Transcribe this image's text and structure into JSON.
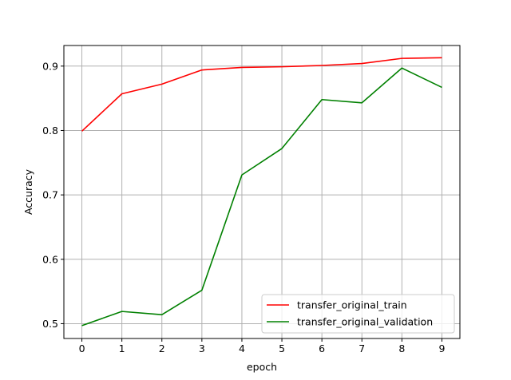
{
  "chart_data": {
    "type": "line",
    "title": "",
    "xlabel": "epoch",
    "ylabel": "Accuracy",
    "x": [
      0,
      1,
      2,
      3,
      4,
      5,
      6,
      7,
      8,
      9
    ],
    "xlim": [
      -0.45,
      9.45
    ],
    "ylim": [
      0.477,
      0.932
    ],
    "xticks": [
      0,
      1,
      2,
      3,
      4,
      5,
      6,
      7,
      8,
      9
    ],
    "yticks": [
      0.5,
      0.6,
      0.7,
      0.8,
      0.9
    ],
    "ytick_labels": [
      "0.5",
      "0.6",
      "0.7",
      "0.8",
      "0.9"
    ],
    "grid": true,
    "legend_position": "lower-right",
    "series": [
      {
        "name": "transfer_original_train",
        "color": "#ff0000",
        "values": [
          0.799,
          0.857,
          0.872,
          0.894,
          0.898,
          0.899,
          0.901,
          0.904,
          0.912,
          0.913
        ]
      },
      {
        "name": "transfer_original_validation",
        "color": "#008000",
        "values": [
          0.497,
          0.519,
          0.514,
          0.552,
          0.731,
          0.772,
          0.848,
          0.843,
          0.897,
          0.867
        ]
      }
    ]
  }
}
